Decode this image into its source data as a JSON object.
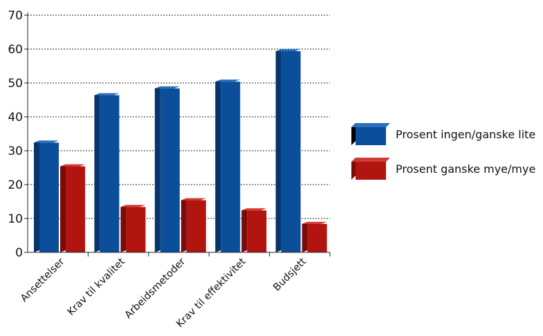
{
  "chart_data": {
    "type": "bar",
    "categories": [
      "Ansettelser",
      "Krav til kvalitet",
      "Arbeidsmetoder",
      "Krav til effektivitet",
      "Budsjett"
    ],
    "series": [
      {
        "name": "Prosent ingen/ganske lite",
        "values": [
          33,
          47,
          49,
          51,
          60
        ],
        "color": "#0b4f9a",
        "side_color": "#07356b",
        "top_color": "#2a6fba"
      },
      {
        "name": "Prosent ganske mye/mye",
        "values": [
          26,
          14,
          16,
          13,
          9
        ],
        "color": "#b21410",
        "side_color": "#7a0b08",
        "top_color": "#cf3a33"
      }
    ],
    "ylim": [
      0,
      70
    ],
    "yticks": [
      0,
      10,
      20,
      30,
      40,
      50,
      60,
      70
    ],
    "grid": true,
    "legend_position": "right",
    "title": "",
    "xlabel": "",
    "ylabel": ""
  }
}
